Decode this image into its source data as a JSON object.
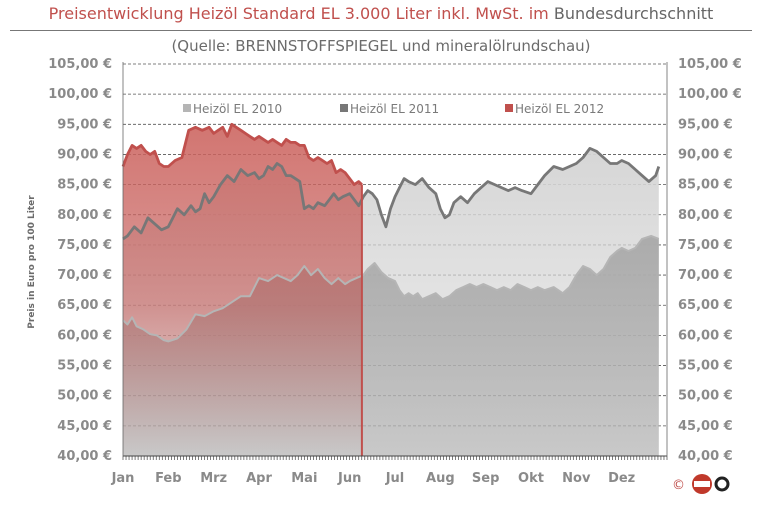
{
  "title_main": "Preisentwicklung Heizöl Standard EL 3.000 Liter inkl. MwSt. im",
  "title_tail": "Bundesdurchschnitt",
  "subtitle": "(Quelle: BRENNSTOFFSPIEGEL  und mineralölrundschau)",
  "copyright": "©",
  "chart_data": {
    "type": "area",
    "ylabel": "Preis in Euro pro 100 Liter",
    "ylim": [
      40,
      105
    ],
    "y_ticks": [
      "40,00 €",
      "45,00 €",
      "50,00 €",
      "55,00 €",
      "60,00 €",
      "65,00 €",
      "70,00 €",
      "75,00 €",
      "80,00 €",
      "85,00 €",
      "90,00 €",
      "95,00 €",
      "100,00 €",
      "105,00 €"
    ],
    "grid": "dashed horizontal",
    "legend_position": "top",
    "categories": [
      "Jan",
      "Feb",
      "Mrz",
      "Apr",
      "Mai",
      "Jun",
      "Jul",
      "Aug",
      "Sep",
      "Okt",
      "Nov",
      "Dez"
    ],
    "series": [
      {
        "name": "Heizöl EL 2010",
        "color": "#b5b5b5",
        "x": [
          0.0,
          0.1,
          0.2,
          0.3,
          0.45,
          0.6,
          0.75,
          0.9,
          1.0,
          1.2,
          1.4,
          1.6,
          1.8,
          2.0,
          2.2,
          2.4,
          2.6,
          2.8,
          3.0,
          3.2,
          3.4,
          3.55,
          3.7,
          3.85,
          4.0,
          4.15,
          4.3,
          4.45,
          4.6,
          4.75,
          4.9,
          5.0,
          5.15,
          5.3,
          5.4,
          5.55,
          5.7,
          5.85,
          6.0,
          6.1,
          6.2,
          6.3,
          6.4,
          6.5,
          6.6,
          6.75,
          6.9,
          7.05,
          7.2,
          7.35,
          7.5,
          7.65,
          7.8,
          7.95,
          8.1,
          8.25,
          8.4,
          8.55,
          8.7,
          8.85,
          9.0,
          9.15,
          9.3,
          9.5,
          9.7,
          9.85,
          10.0,
          10.15,
          10.3,
          10.45,
          10.6,
          10.75,
          10.9,
          11.0,
          11.15,
          11.3,
          11.45,
          11.65,
          11.82
        ],
        "values": [
          62.5,
          61.8,
          63.0,
          61.5,
          61.0,
          60.2,
          60.0,
          59.2,
          59.0,
          59.5,
          61.0,
          63.5,
          63.2,
          64.0,
          64.5,
          65.5,
          66.5,
          66.5,
          69.5,
          69.0,
          70.0,
          69.5,
          69.0,
          70.0,
          71.5,
          70.0,
          71.0,
          69.5,
          68.5,
          69.5,
          68.5,
          69.0,
          69.5,
          70.0,
          71.0,
          72.0,
          70.5,
          69.5,
          69.0,
          67.5,
          66.5,
          67.0,
          66.5,
          67.0,
          66.0,
          66.5,
          67.0,
          66.0,
          66.5,
          67.5,
          68.0,
          68.5,
          68.0,
          68.5,
          68.0,
          67.5,
          68.0,
          67.5,
          68.5,
          68.0,
          67.5,
          68.0,
          67.5,
          68.0,
          67.0,
          68.0,
          70.0,
          71.5,
          71.0,
          70.0,
          71.0,
          73.0,
          74.0,
          74.5,
          74.0,
          74.5,
          76.0,
          76.5,
          76.0
        ]
      },
      {
        "name": "Heizöl EL 2011",
        "color": "#777777",
        "x": [
          0.0,
          0.1,
          0.25,
          0.4,
          0.55,
          0.7,
          0.85,
          1.0,
          1.1,
          1.2,
          1.35,
          1.5,
          1.6,
          1.7,
          1.8,
          1.9,
          2.0,
          2.15,
          2.3,
          2.45,
          2.6,
          2.75,
          2.9,
          3.0,
          3.1,
          3.2,
          3.3,
          3.4,
          3.5,
          3.6,
          3.7,
          3.8,
          3.9,
          4.0,
          4.1,
          4.2,
          4.3,
          4.45,
          4.55,
          4.65,
          4.75,
          4.85,
          5.0,
          5.1,
          5.2,
          5.3,
          5.4,
          5.5,
          5.6,
          5.7,
          5.8,
          5.9,
          6.0,
          6.1,
          6.2,
          6.3,
          6.45,
          6.6,
          6.75,
          6.9,
          7.0,
          7.1,
          7.2,
          7.3,
          7.45,
          7.6,
          7.75,
          7.9,
          8.05,
          8.2,
          8.35,
          8.5,
          8.65,
          8.8,
          9.0,
          9.15,
          9.3,
          9.5,
          9.7,
          9.85,
          10.0,
          10.15,
          10.3,
          10.45,
          10.6,
          10.75,
          10.9,
          11.0,
          11.15,
          11.3,
          11.45,
          11.6,
          11.75,
          11.82
        ],
        "values": [
          76.0,
          76.5,
          78.0,
          77.0,
          79.5,
          78.5,
          77.5,
          78.0,
          79.5,
          81.0,
          80.0,
          81.5,
          80.5,
          81.0,
          83.5,
          82.0,
          83.0,
          85.0,
          86.5,
          85.5,
          87.5,
          86.5,
          87.0,
          86.0,
          86.5,
          88.0,
          87.5,
          88.5,
          88.0,
          86.5,
          86.5,
          86.0,
          85.5,
          81.0,
          81.5,
          81.0,
          82.0,
          81.5,
          82.5,
          83.5,
          82.5,
          83.0,
          83.5,
          82.5,
          81.5,
          83.0,
          84.0,
          83.5,
          82.5,
          80.0,
          78.0,
          81.0,
          83.0,
          84.5,
          86.0,
          85.5,
          85.0,
          86.0,
          84.5,
          83.5,
          81.0,
          79.5,
          80.0,
          82.0,
          83.0,
          82.0,
          83.5,
          84.5,
          85.5,
          85.0,
          84.5,
          84.0,
          84.5,
          84.0,
          83.5,
          85.0,
          86.5,
          88.0,
          87.5,
          88.0,
          88.5,
          89.5,
          91.0,
          90.5,
          89.5,
          88.5,
          88.5,
          89.0,
          88.5,
          87.5,
          86.5,
          85.5,
          86.5,
          88.0
        ]
      },
      {
        "name": "Heizöl EL 2012",
        "color": "#c0504d",
        "x": [
          0.0,
          0.1,
          0.2,
          0.3,
          0.4,
          0.5,
          0.6,
          0.7,
          0.8,
          0.9,
          1.0,
          1.15,
          1.3,
          1.45,
          1.6,
          1.75,
          1.9,
          2.0,
          2.1,
          2.2,
          2.3,
          2.4,
          2.5,
          2.6,
          2.7,
          2.8,
          2.9,
          3.0,
          3.1,
          3.2,
          3.3,
          3.4,
          3.5,
          3.6,
          3.7,
          3.8,
          3.9,
          4.0,
          4.1,
          4.2,
          4.3,
          4.4,
          4.5,
          4.6,
          4.7,
          4.8,
          4.9,
          5.0,
          5.1,
          5.2,
          5.27
        ],
        "values": [
          88.0,
          90.0,
          91.5,
          91.0,
          91.5,
          90.5,
          90.0,
          90.5,
          88.5,
          88.0,
          88.0,
          89.0,
          89.5,
          94.0,
          94.5,
          94.0,
          94.5,
          93.5,
          94.0,
          94.5,
          93.0,
          95.0,
          94.5,
          94.0,
          93.5,
          93.0,
          92.5,
          93.0,
          92.5,
          92.0,
          92.5,
          92.0,
          91.5,
          92.5,
          92.0,
          92.0,
          91.5,
          91.5,
          89.5,
          89.0,
          89.5,
          89.0,
          88.5,
          89.0,
          87.0,
          87.5,
          87.0,
          86.0,
          85.0,
          85.5,
          85.0
        ]
      }
    ]
  }
}
